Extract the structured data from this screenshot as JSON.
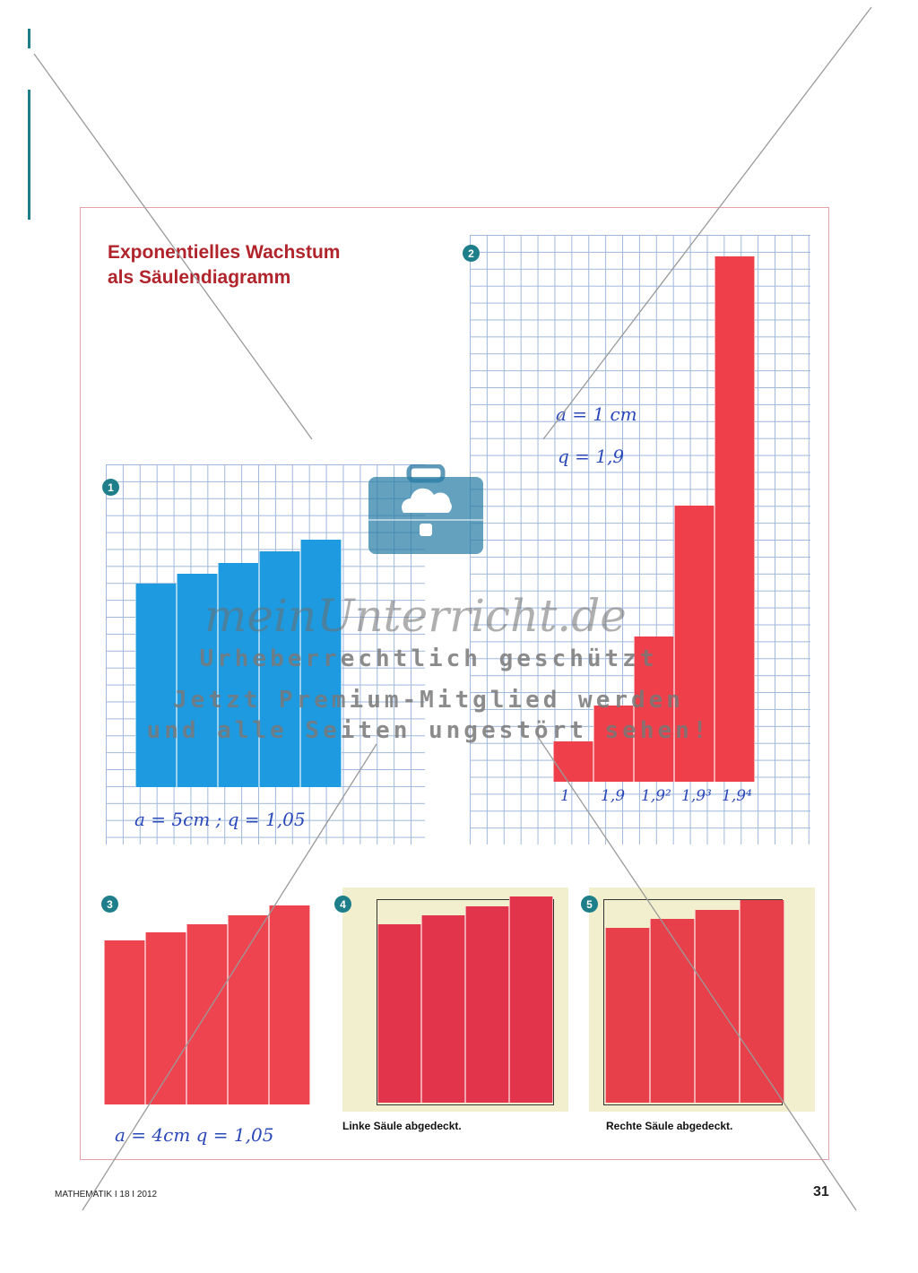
{
  "title": {
    "line1": "Exponentielles Wachstum",
    "line2": "als Säulendiagramm"
  },
  "badges": [
    "1",
    "2",
    "3",
    "4",
    "5"
  ],
  "figure1": {
    "color": "#1d9ae0",
    "note": "a = 5cm  ;  q = 1,05",
    "values": [
      1,
      1.05,
      1.1025,
      1.157625,
      1.21550625
    ]
  },
  "figure2": {
    "color": "#ee3f4a",
    "note_a": "a = 1 cm",
    "note_q": "q = 1,9",
    "labels": [
      "1",
      "1,9",
      "1,9²",
      "1,9³",
      "1,9⁴"
    ],
    "values": [
      1,
      1.9,
      3.61,
      6.859,
      13.0321
    ]
  },
  "figure3": {
    "color": "#ee4450",
    "note": "a = 4cm    q = 1,05",
    "values": [
      1,
      1.05,
      1.1025,
      1.157625,
      1.21550625
    ]
  },
  "figure4": {
    "color": "#e2344a",
    "caption": "Linke Säule abgedeckt."
  },
  "figure5": {
    "color": "#e8404a",
    "caption": "Rechte Säule abgedeckt."
  },
  "footer": {
    "left": "MATHEMATIK I 18 I 2012",
    "page": "31"
  },
  "watermark": {
    "logo": "meinUnterricht.de",
    "line1": "Urheberrechtlich geschützt",
    "line2": "Jetzt Premium-Mitglied werden",
    "line3": "und alle Seiten ungestört sehen!"
  }
}
